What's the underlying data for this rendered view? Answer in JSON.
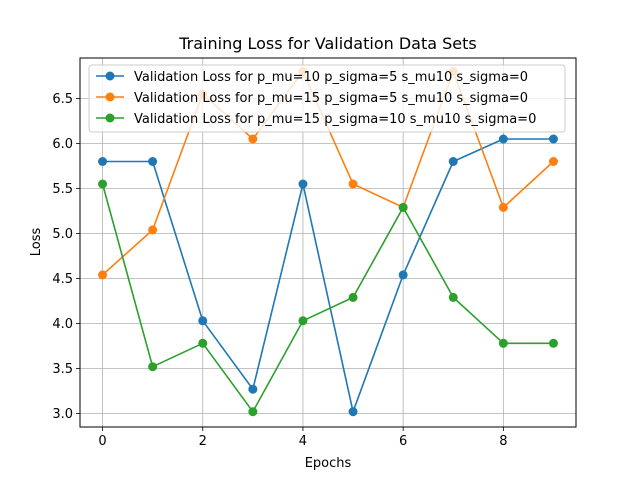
{
  "chart_data": {
    "type": "line",
    "title": "Training Loss for Validation Data Sets",
    "xlabel": "Epochs",
    "ylabel": "Loss",
    "x": [
      0,
      1,
      2,
      3,
      4,
      5,
      6,
      7,
      8,
      9
    ],
    "xlim": [
      -0.45,
      9.45
    ],
    "ylim": [
      2.85,
      6.95
    ],
    "xticks": [
      0,
      2,
      4,
      6,
      8
    ],
    "xtick_labels": [
      "0",
      "2",
      "4",
      "6",
      "8"
    ],
    "yticks": [
      3.0,
      3.5,
      4.0,
      4.5,
      5.0,
      5.5,
      6.0,
      6.5
    ],
    "ytick_labels": [
      "3.0",
      "3.5",
      "4.0",
      "4.5",
      "5.0",
      "5.5",
      "6.0",
      "6.5"
    ],
    "grid": true,
    "legend_position": "top-left",
    "series": [
      {
        "name": "Validation Loss for p_mu=10 p_sigma=5 s_mu10 s_sigma=0",
        "color": "#1f77b4",
        "values": [
          5.8,
          5.8,
          4.03,
          3.27,
          5.55,
          3.02,
          4.54,
          5.8,
          6.05,
          6.05
        ]
      },
      {
        "name": "Validation Loss for p_mu=15 p_sigma=5 s_mu10 s_sigma=0",
        "color": "#ff7f0e",
        "values": [
          4.54,
          5.04,
          6.55,
          6.05,
          6.8,
          5.55,
          5.29,
          6.8,
          5.29,
          5.8
        ]
      },
      {
        "name": "Validation Loss for p_mu=15 p_sigma=10 s_mu10 s_sigma=0",
        "color": "#2ca02c",
        "values": [
          5.55,
          3.52,
          3.78,
          3.02,
          4.03,
          4.29,
          5.29,
          4.29,
          3.78,
          3.78
        ]
      }
    ]
  }
}
